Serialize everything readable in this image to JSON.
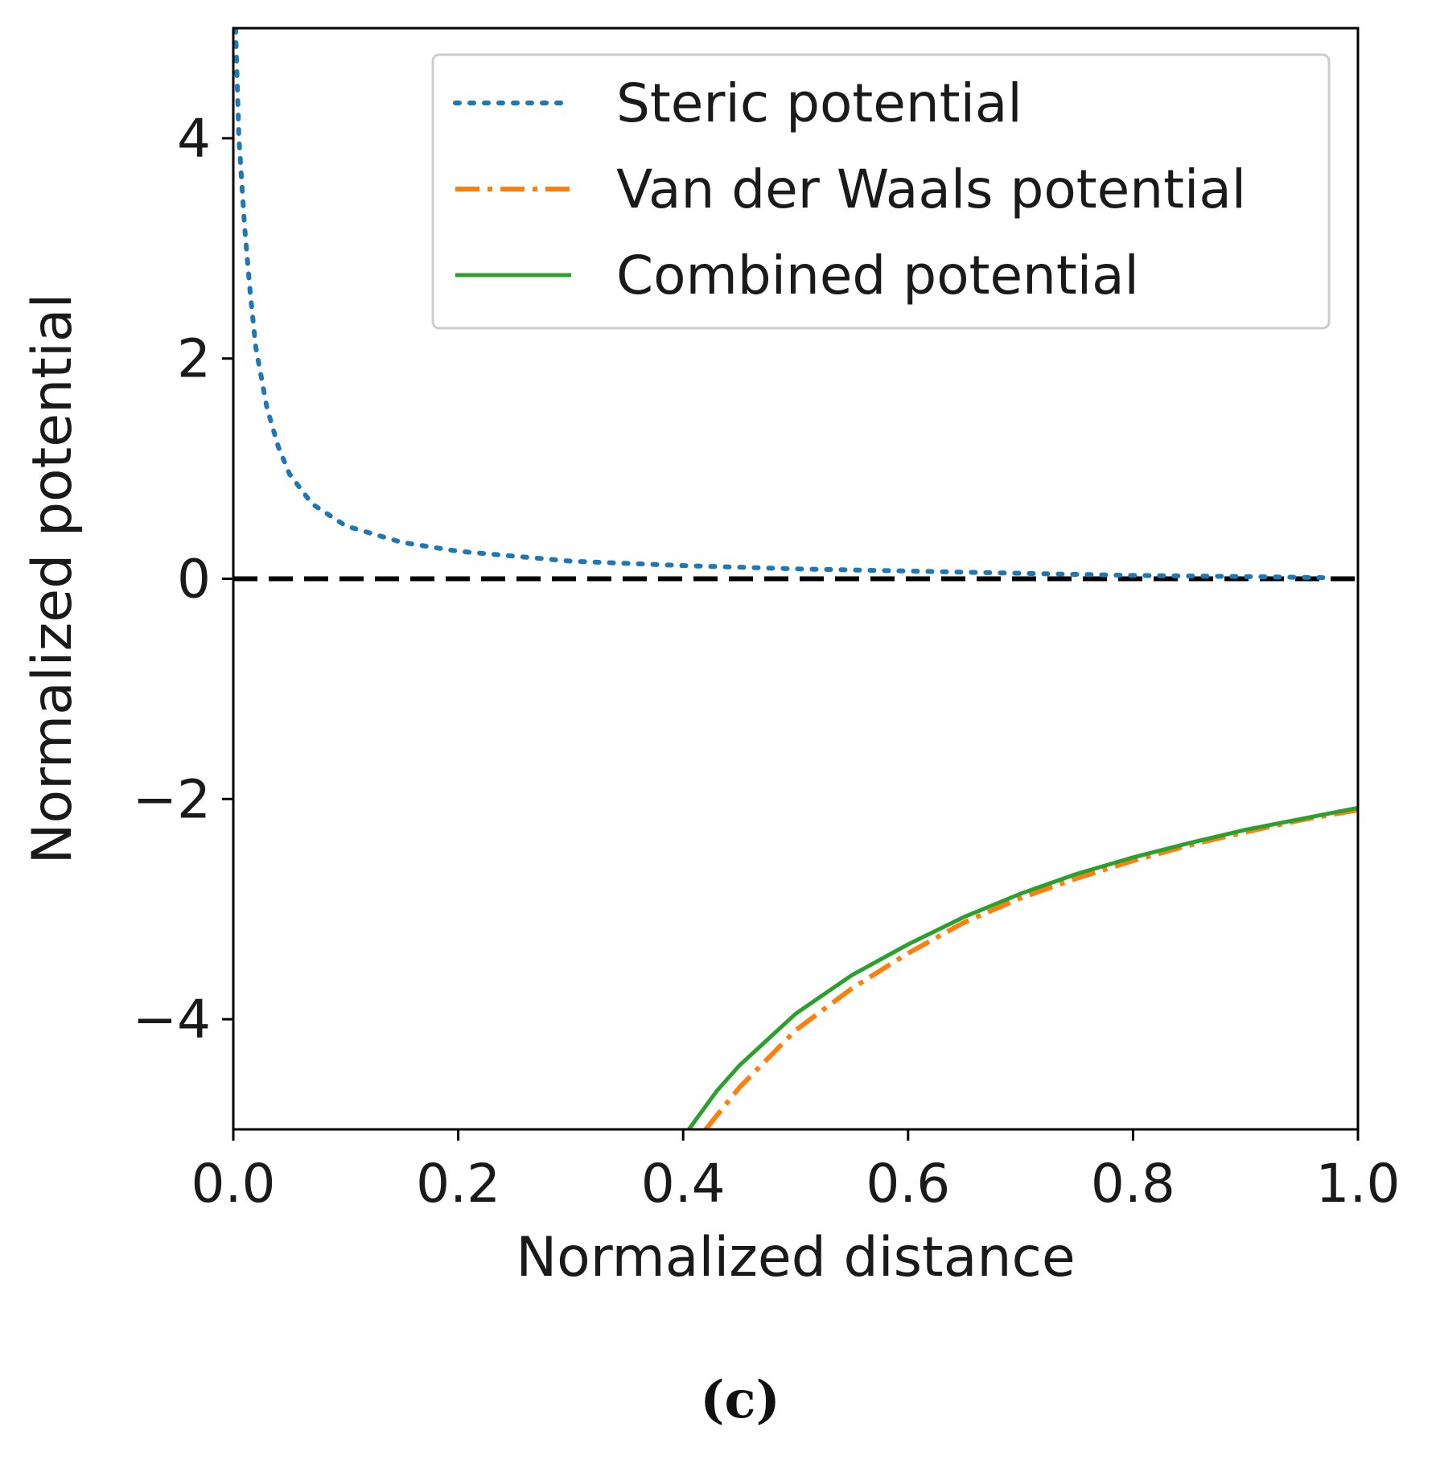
{
  "chart_data": {
    "type": "line",
    "title": "",
    "xlabel": "Normalized distance",
    "ylabel": "Normalized potential",
    "xlim": [
      0.0,
      1.0
    ],
    "ylim": [
      -5,
      5
    ],
    "x_ticks": [
      0.0,
      0.2,
      0.4,
      0.6,
      0.8,
      1.0
    ],
    "x_tick_labels": [
      "0.0",
      "0.2",
      "0.4",
      "0.6",
      "0.8",
      "1.0"
    ],
    "y_ticks": [
      -4,
      -2,
      0,
      2,
      4
    ],
    "y_tick_labels": [
      "−4",
      "−2",
      "0",
      "2",
      "4"
    ],
    "grid": false,
    "legend_position": "top-right",
    "caption": "(c)",
    "reference_line": {
      "y": 0,
      "style": "dashed",
      "color": "#000000"
    },
    "series": [
      {
        "name": "Steric potential",
        "style": "dotted",
        "color": "#1f77b4",
        "x": [
          0.002,
          0.005,
          0.01,
          0.015,
          0.02,
          0.03,
          0.04,
          0.05,
          0.07,
          0.1,
          0.15,
          0.2,
          0.3,
          0.4,
          0.5,
          0.6,
          0.7,
          0.8,
          0.9,
          0.97
        ],
        "values": [
          5.0,
          4.0,
          3.2,
          2.6,
          2.1,
          1.55,
          1.2,
          0.95,
          0.68,
          0.48,
          0.33,
          0.25,
          0.16,
          0.12,
          0.09,
          0.07,
          0.05,
          0.03,
          0.02,
          0.01
        ]
      },
      {
        "name": "Van der Waals potential",
        "style": "dashdot",
        "color": "#ff7f0e",
        "x": [
          0.42,
          0.45,
          0.5,
          0.55,
          0.6,
          0.65,
          0.7,
          0.75,
          0.8,
          0.85,
          0.9,
          0.95,
          1.0
        ],
        "values": [
          -5.0,
          -4.62,
          -4.1,
          -3.72,
          -3.4,
          -3.12,
          -2.9,
          -2.72,
          -2.56,
          -2.42,
          -2.3,
          -2.19,
          -2.1
        ]
      },
      {
        "name": "Combined potential",
        "style": "solid",
        "color": "#2ca02c",
        "x": [
          0.405,
          0.43,
          0.45,
          0.5,
          0.55,
          0.6,
          0.65,
          0.7,
          0.75,
          0.8,
          0.85,
          0.9,
          0.95,
          1.0
        ],
        "values": [
          -5.0,
          -4.65,
          -4.42,
          -3.95,
          -3.6,
          -3.32,
          -3.07,
          -2.86,
          -2.68,
          -2.53,
          -2.4,
          -2.28,
          -2.18,
          -2.08
        ]
      }
    ]
  }
}
